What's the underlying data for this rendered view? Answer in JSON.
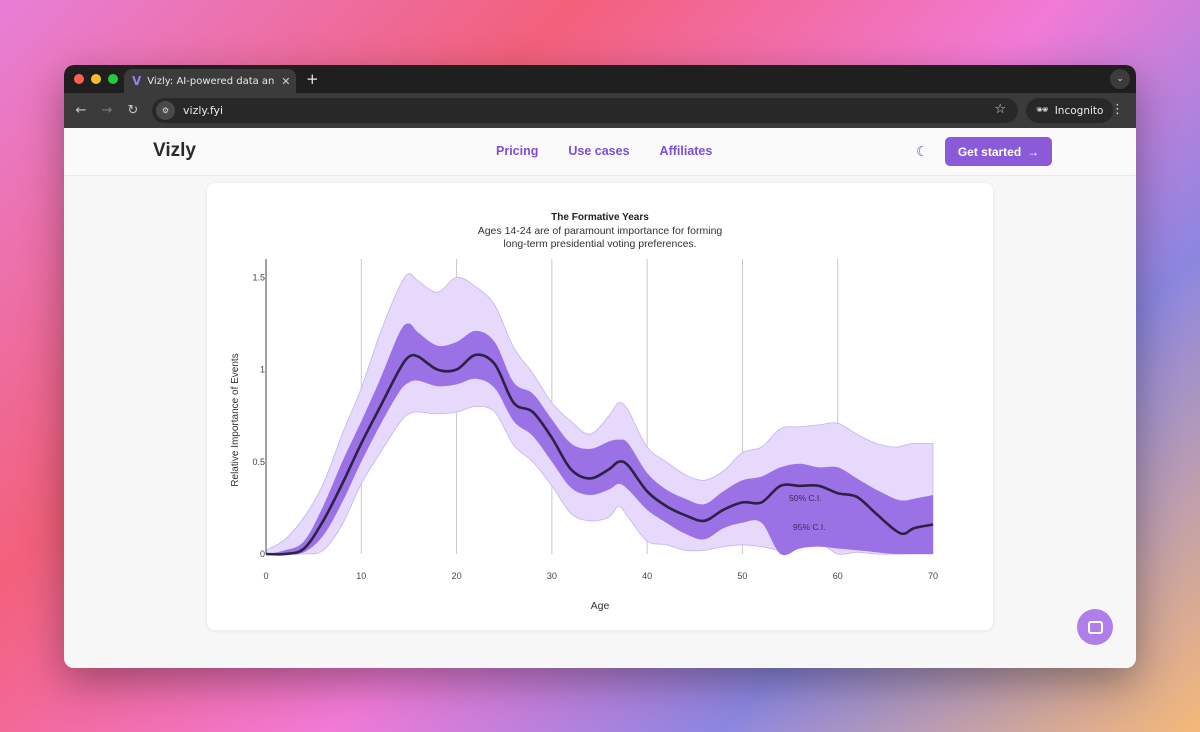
{
  "browser": {
    "tab_title": "Vizly: AI-powered data analysis",
    "url": "vizly.fyi",
    "incognito_label": "Incognito"
  },
  "site": {
    "brand": "Vizly",
    "nav": [
      "Pricing",
      "Use cases",
      "Affiliates"
    ],
    "cta_label": "Get started"
  },
  "chart_data": {
    "type": "area",
    "title": "The Formative Years",
    "subtitle_lines": [
      "Ages 14-24 are of paramount importance for forming",
      "long-term presidential voting preferences."
    ],
    "xlabel": "Age",
    "ylabel": "Relative Importance of Events",
    "xlim": [
      0,
      70
    ],
    "ylim": [
      0,
      1.6
    ],
    "x_ticks": [
      0,
      10,
      20,
      30,
      40,
      50,
      60,
      70
    ],
    "y_ticks": [
      0,
      0.5,
      1,
      1.5
    ],
    "y_tick_labels": [
      "0",
      "0.5",
      "1",
      "1.5"
    ],
    "vertical_gridlines": [
      10,
      20,
      30,
      40,
      50,
      60
    ],
    "annotations": [
      "50% C.I.",
      "95% C.I."
    ],
    "colors": {
      "mean": "#2e2144",
      "ci50": "#9b72e6",
      "ci95": "#e6d9fb"
    },
    "x": [
      0,
      2,
      4,
      6,
      8,
      10,
      12,
      14,
      15,
      16,
      18,
      20,
      22,
      24,
      26,
      28,
      30,
      32,
      34,
      36,
      37,
      38,
      40,
      42,
      44,
      46,
      48,
      50,
      52,
      54,
      56,
      58,
      60,
      62,
      64,
      66,
      67,
      68,
      70
    ],
    "mean": [
      0,
      0,
      0.03,
      0.18,
      0.38,
      0.6,
      0.8,
      1.0,
      1.07,
      1.07,
      1.0,
      1.0,
      1.08,
      1.03,
      0.82,
      0.77,
      0.63,
      0.46,
      0.41,
      0.46,
      0.5,
      0.48,
      0.34,
      0.26,
      0.21,
      0.18,
      0.24,
      0.28,
      0.28,
      0.37,
      0.37,
      0.37,
      0.33,
      0.31,
      0.22,
      0.13,
      0.11,
      0.14,
      0.16
    ],
    "ci50_lo": [
      0,
      0,
      0.01,
      0.1,
      0.28,
      0.5,
      0.7,
      0.88,
      0.93,
      0.94,
      0.91,
      0.92,
      0.95,
      0.9,
      0.72,
      0.64,
      0.5,
      0.36,
      0.32,
      0.35,
      0.38,
      0.35,
      0.24,
      0.17,
      0.11,
      0.08,
      0.14,
      0.17,
      0.17,
      0.0,
      0.03,
      0.04,
      0.03,
      0.02,
      0.01,
      0.0,
      0.0,
      0.0,
      0.0
    ],
    "ci50_hi": [
      0,
      0.02,
      0.07,
      0.26,
      0.5,
      0.72,
      0.95,
      1.2,
      1.25,
      1.2,
      1.13,
      1.15,
      1.21,
      1.15,
      0.93,
      0.87,
      0.73,
      0.6,
      0.57,
      0.61,
      0.62,
      0.6,
      0.44,
      0.35,
      0.3,
      0.27,
      0.34,
      0.4,
      0.42,
      0.47,
      0.49,
      0.47,
      0.47,
      0.41,
      0.35,
      0.3,
      0.29,
      0.3,
      0.32
    ],
    "ci95_lo": [
      0,
      0,
      0,
      0.02,
      0.16,
      0.38,
      0.55,
      0.71,
      0.76,
      0.77,
      0.76,
      0.77,
      0.8,
      0.77,
      0.59,
      0.5,
      0.37,
      0.22,
      0.18,
      0.2,
      0.26,
      0.2,
      0.07,
      0.05,
      0.02,
      0.02,
      0.04,
      0.05,
      0.04,
      0.02,
      0.03,
      0.06,
      0.0,
      0.01,
      0.0,
      0.0,
      0.0,
      0.0,
      0.0
    ],
    "ci95_hi": [
      0.02,
      0.08,
      0.2,
      0.38,
      0.65,
      0.9,
      1.2,
      1.45,
      1.52,
      1.48,
      1.42,
      1.5,
      1.45,
      1.35,
      1.12,
      0.98,
      0.82,
      0.72,
      0.65,
      0.75,
      0.82,
      0.78,
      0.58,
      0.5,
      0.43,
      0.4,
      0.45,
      0.55,
      0.58,
      0.68,
      0.69,
      0.7,
      0.71,
      0.65,
      0.6,
      0.58,
      0.59,
      0.6,
      0.6
    ]
  }
}
